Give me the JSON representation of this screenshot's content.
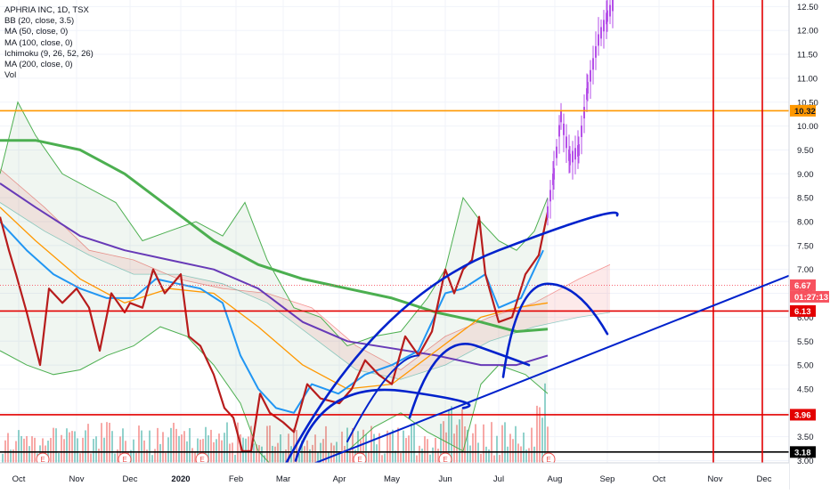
{
  "chart_data": {
    "type": "candlestick",
    "title": "APHRIA INC, 1D, TSX",
    "indicators": [
      "BB (20, close, 3.5)",
      "MA (50, close, 0)",
      "MA (100, close, 0)",
      "Ichimoku (9, 26, 52, 26)",
      "MA (200, close, 0)",
      "Vol"
    ],
    "x_tick_labels": [
      "Oct",
      "Nov",
      "Dec",
      "2020",
      "Feb",
      "Mar",
      "Apr",
      "May",
      "Jun",
      "Jul",
      "Aug",
      "Sep",
      "Oct",
      "Nov",
      "Dec"
    ],
    "y_tick_labels": [
      "3.00",
      "3.50",
      "4.00",
      "4.50",
      "5.00",
      "5.50",
      "6.00",
      "6.50",
      "7.00",
      "7.50",
      "8.00",
      "8.50",
      "9.00",
      "9.50",
      "10.00",
      "10.50",
      "11.00",
      "11.50",
      "12.00",
      "12.50"
    ],
    "ylim": [
      2.95,
      12.62
    ],
    "price_tags": [
      {
        "value": "12.50",
        "bg": "#ffffff",
        "fg": "#131722"
      },
      {
        "value": "10.32",
        "bg": "#ff9800",
        "fg": "#131722"
      },
      {
        "value": "6.67",
        "bg": "#f7525f",
        "fg": "#ffffff"
      },
      {
        "value": "01:27:13",
        "bg": "#f7525f",
        "fg": "#ffffff"
      },
      {
        "value": "6.13",
        "bg": "#e30000",
        "fg": "#ffffff"
      },
      {
        "value": "3.96",
        "bg": "#e30000",
        "fg": "#ffffff"
      },
      {
        "value": "3.18",
        "bg": "#000000",
        "fg": "#ffffff"
      }
    ],
    "horizontal_lines": [
      {
        "y": 10.32,
        "color": "#ff9800"
      },
      {
        "y": 6.13,
        "color": "#e30000"
      },
      {
        "y": 3.96,
        "color": "#e30000"
      },
      {
        "y": 3.18,
        "color": "#000000"
      }
    ],
    "vertical_lines_dates": [
      "Nov",
      "Dec"
    ],
    "earnings_markers": [
      "E",
      "E",
      "E",
      "E",
      "E",
      "E"
    ],
    "price_path": {
      "dates": [
        "Oct",
        "Nov",
        "Dec",
        "2020",
        "Feb",
        "Mar",
        "Apr",
        "May",
        "Jun",
        "Jul",
        "Aug",
        "Sep"
      ],
      "approx_close": [
        8.1,
        6.6,
        6.3,
        6.9,
        3.2,
        3.8,
        4.2,
        4.4,
        7.0,
        5.9,
        9.2,
        12.6
      ]
    },
    "ma200_color": "#4caf50",
    "ma100_color": "#673ab7",
    "ma50_color": "#ff9800",
    "price_color": "#b71c1c",
    "breakout_color": "#b44fe8",
    "drawing_color": "#0022cc",
    "accent_up": "#26a69a",
    "accent_down": "#ef5350",
    "grid": true
  }
}
